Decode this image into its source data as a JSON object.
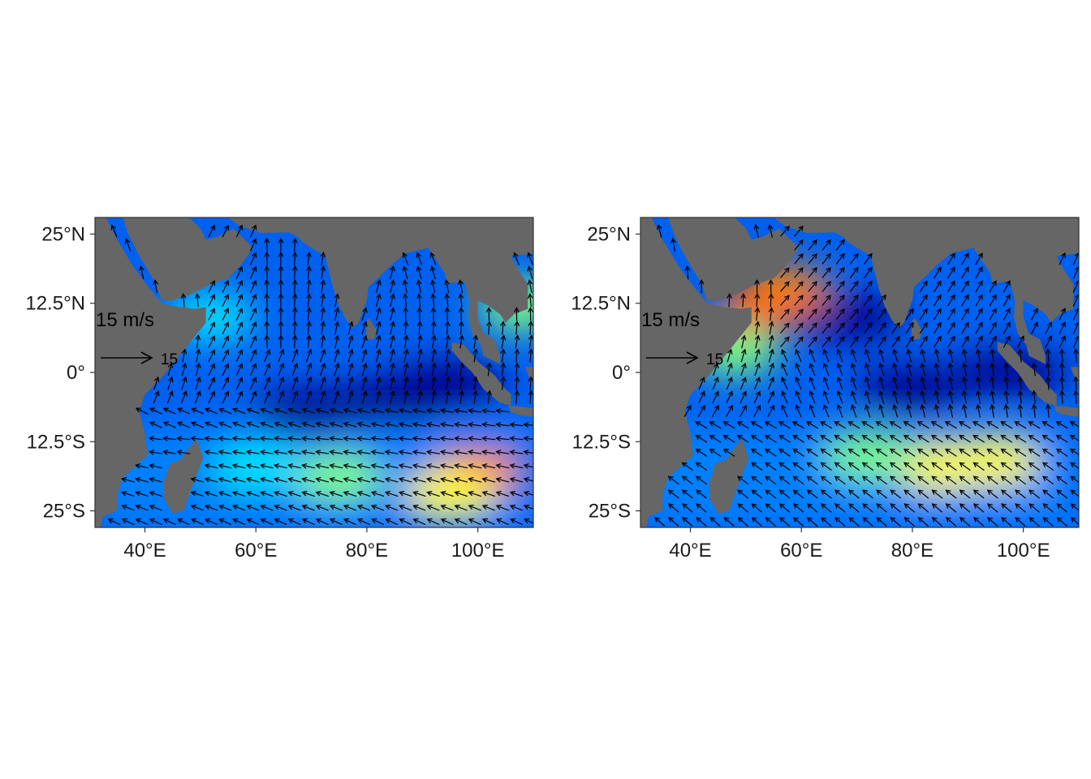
{
  "colors": {
    "land": "#666666",
    "frame": "#333333",
    "arrow": "#000000",
    "speed_scale": [
      "#00008b",
      "#0000ff",
      "#0080ff",
      "#00e5ff",
      "#7fff7f",
      "#ffff00",
      "#ff8000",
      "#ff0000"
    ]
  },
  "axes": {
    "lon_ticks": [
      "40°E",
      "60°E",
      "80°E",
      "100°E"
    ],
    "lat_ticks": [
      "25°N",
      "12.5°N",
      "0°",
      "12.5°S",
      "25°S"
    ],
    "lon_range": [
      31,
      110
    ],
    "lat_range": [
      -28,
      28
    ]
  },
  "panels": [
    {
      "reference_label": "15 m/s",
      "reference_value": "15",
      "regime": "summer-southeasterlies",
      "hotspots": [
        {
          "lon": 100,
          "lat": -18,
          "level": 0.85
        },
        {
          "lon": 95,
          "lat": -22,
          "level": 0.75
        },
        {
          "lon": 75,
          "lat": -19,
          "level": 0.55
        },
        {
          "lon": 108,
          "lat": 12,
          "level": 0.6
        },
        {
          "lon": 52,
          "lat": 10,
          "level": 0.45
        },
        {
          "lon": 60,
          "lat": -17,
          "level": 0.45
        }
      ],
      "lowspots": [
        {
          "lon": 85,
          "lat": -5,
          "level": 0.0
        },
        {
          "lon": 70,
          "lat": -7,
          "level": 0.0
        },
        {
          "lon": 95,
          "lat": -2,
          "level": 0.05
        }
      ]
    },
    {
      "reference_label": "15 m/s",
      "reference_value": "15",
      "regime": "monsoon-southwesterlies",
      "hotspots": [
        {
          "lon": 53,
          "lat": 12,
          "level": 0.95
        },
        {
          "lon": 57,
          "lat": 15,
          "level": 0.85
        },
        {
          "lon": 48,
          "lat": 4,
          "level": 0.55
        },
        {
          "lon": 85,
          "lat": -17,
          "level": 0.7
        },
        {
          "lon": 95,
          "lat": -16,
          "level": 0.75
        },
        {
          "lon": 72,
          "lat": -15,
          "level": 0.55
        }
      ],
      "lowspots": [
        {
          "lon": 68,
          "lat": 10,
          "level": 0.0
        },
        {
          "lon": 80,
          "lat": -3,
          "level": 0.05
        },
        {
          "lon": 98,
          "lat": 0,
          "level": 0.05
        }
      ]
    }
  ]
}
